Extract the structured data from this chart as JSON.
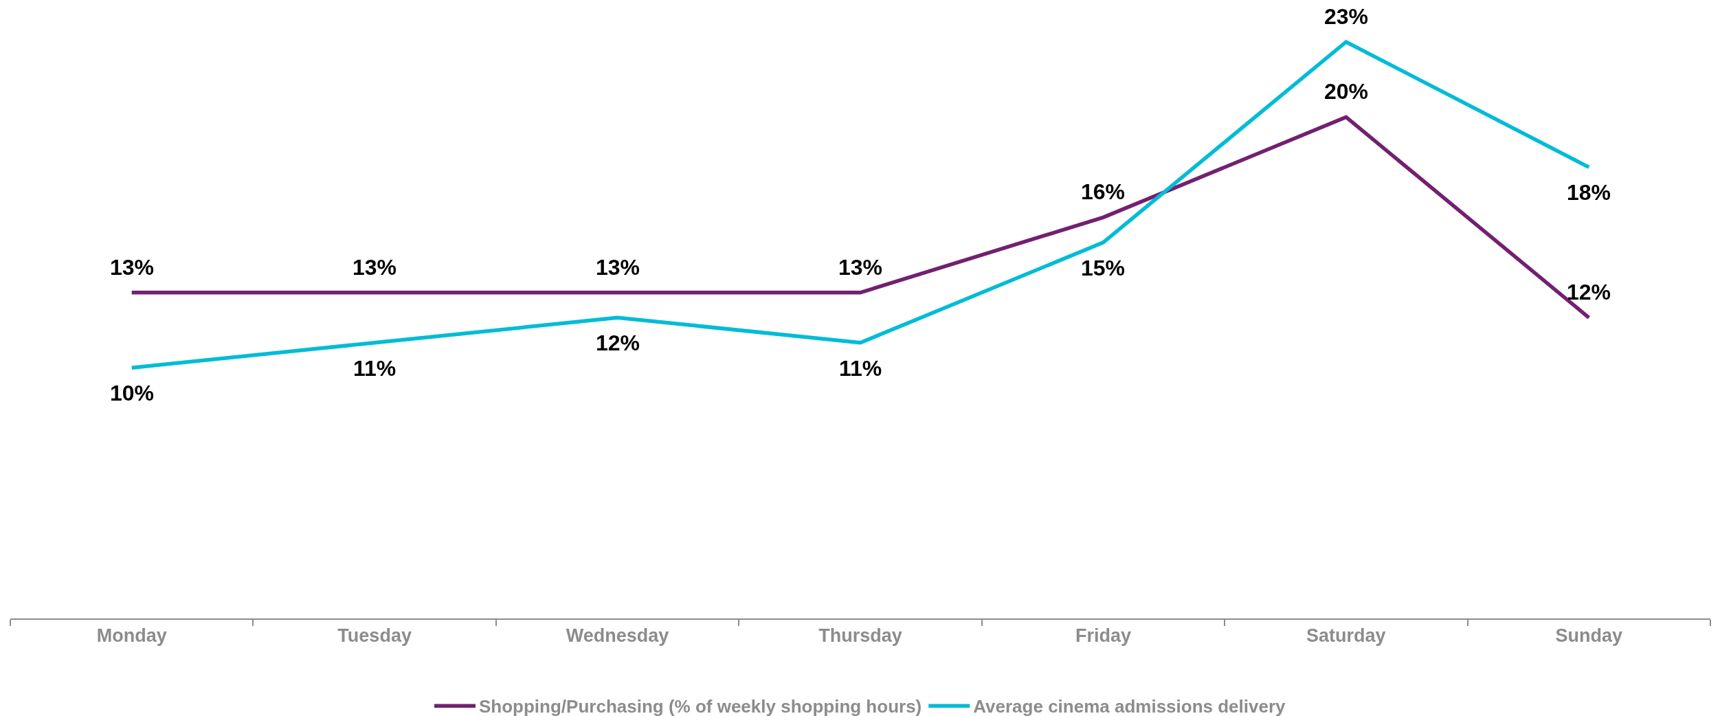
{
  "chart_data": {
    "type": "line",
    "categories": [
      "Monday",
      "Tuesday",
      "Wednesday",
      "Thursday",
      "Friday",
      "Saturday",
      "Sunday"
    ],
    "series": [
      {
        "name": "Shopping/Purchasing (% of weekly shopping hours)",
        "color": "#732071",
        "values": [
          13,
          13,
          13,
          13,
          16,
          20,
          12
        ],
        "value_labels": [
          "13%",
          "13%",
          "13%",
          "13%",
          "16%",
          "20%",
          "12%"
        ]
      },
      {
        "name": "Average cinema admissions delivery",
        "color": "#00bcd6",
        "values": [
          10,
          11,
          12,
          11,
          15,
          23,
          18
        ],
        "value_labels": [
          "10%",
          "11%",
          "12%",
          "11%",
          "15%",
          "23%",
          "18%"
        ]
      }
    ],
    "tick_labels": "x",
    "legend": "bottom"
  }
}
